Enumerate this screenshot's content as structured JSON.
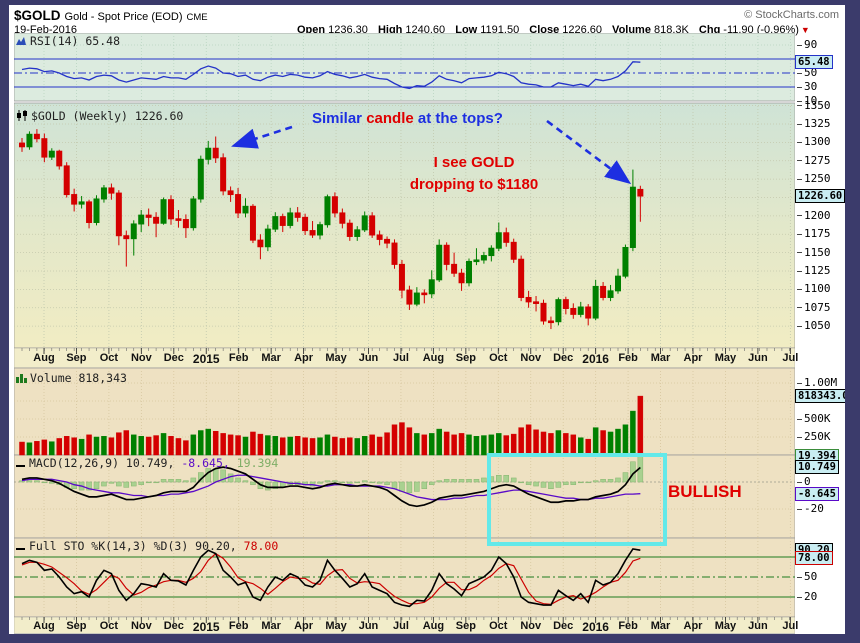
{
  "header": {
    "symbol": "$GOLD",
    "description": "Gold - Spot Price (EOD)",
    "exchange": "CME",
    "copyright": "© StockCharts.com",
    "date": "19-Feb-2016",
    "quote": {
      "open_label": "Open",
      "open": "1236.30",
      "high_label": "High",
      "high": "1240.60",
      "low_label": "Low",
      "low": "1191.50",
      "close_label": "Close",
      "close": "1226.60",
      "volume_label": "Volume",
      "volume": "818.3K",
      "chg_label": "Chg",
      "chg": "-11.90 (-0.96%)",
      "chg_dir_icon": "▼"
    }
  },
  "panel_titles": {
    "rsi": "RSI(14) 65.48",
    "main": "$GOLD (Weekly) 1226.60",
    "volume": "Volume 818,343",
    "macd_black": "MACD(12,26,9) 10.749,",
    "macd_purple": " -8.645,",
    "macd_green": " 19.394",
    "sto_black": "Full STO %K(14,3) %D(3) 90.20,",
    "sto_red": " 78.00"
  },
  "annotations": {
    "similar_blue1": "Similar ",
    "similar_red": "candle ",
    "similar_blue2": " at the tops?",
    "drop_line1": "I see GOLD",
    "drop_line2": "dropping to $1180",
    "bullish": "BULLISH"
  },
  "colors": {
    "frame_navy": "#3b3b6b",
    "candle_up": "#008000",
    "candle_down": "#d40000",
    "rsi_line": "#2433c8",
    "macd_line": "#000000",
    "macd_signal": "#5a0ac8",
    "macd_hist": "#a9d190",
    "sto_k": "#000000",
    "sto_d": "#cc0000",
    "annotation_blue": "#1d2fe1",
    "annotation_red": "#e00000",
    "highlight_cyan": "#63e9e9",
    "tag_bg": "#c9edf2"
  },
  "chart_data": {
    "type": "candlestick",
    "title": "$GOLD (Weekly) 1226.60",
    "symbol": "$GOLD",
    "timeframe": "Weekly",
    "x_axis_months": [
      "Aug",
      "Sep",
      "Oct",
      "Nov",
      "Dec",
      "2015",
      "Feb",
      "Mar",
      "Apr",
      "May",
      "Jun",
      "Jul",
      "Aug",
      "Sep",
      "Oct",
      "Nov",
      "Dec",
      "2016",
      "Feb",
      "Mar",
      "Apr",
      "May",
      "Jun",
      "Jul"
    ],
    "price_axis_ticks": [
      {
        "t": "1350",
        "v": 1350
      },
      {
        "t": "1325",
        "v": 1325
      },
      {
        "t": "1300",
        "v": 1300
      },
      {
        "t": "1275",
        "v": 1275
      },
      {
        "t": "1250",
        "v": 1250
      },
      {
        "t": "1200",
        "v": 1200
      },
      {
        "t": "1175",
        "v": 1175
      },
      {
        "t": "1150",
        "v": 1150
      },
      {
        "t": "1125",
        "v": 1125
      },
      {
        "t": "1100",
        "v": 1100
      },
      {
        "t": "1075",
        "v": 1075
      },
      {
        "t": "1050",
        "v": 1050
      }
    ],
    "price_box": {
      "t": "1226.60",
      "v": 1226.6,
      "border": "#000000"
    },
    "candles_ohlc": [
      [
        1299,
        1306,
        1287,
        1294
      ],
      [
        1294,
        1315,
        1290,
        1311
      ],
      [
        1311,
        1318,
        1300,
        1305
      ],
      [
        1305,
        1312,
        1273,
        1280
      ],
      [
        1280,
        1292,
        1276,
        1288
      ],
      [
        1288,
        1290,
        1263,
        1268
      ],
      [
        1268,
        1273,
        1225,
        1229
      ],
      [
        1229,
        1237,
        1206,
        1216
      ],
      [
        1216,
        1227,
        1210,
        1219
      ],
      [
        1219,
        1222,
        1183,
        1191
      ],
      [
        1191,
        1228,
        1187,
        1223
      ],
      [
        1223,
        1242,
        1218,
        1238
      ],
      [
        1238,
        1244,
        1222,
        1231
      ],
      [
        1231,
        1235,
        1160,
        1173
      ],
      [
        1173,
        1180,
        1131,
        1169
      ],
      [
        1169,
        1194,
        1146,
        1189
      ],
      [
        1189,
        1208,
        1178,
        1201
      ],
      [
        1201,
        1210,
        1186,
        1198
      ],
      [
        1198,
        1205,
        1171,
        1190
      ],
      [
        1190,
        1225,
        1188,
        1222
      ],
      [
        1222,
        1228,
        1188,
        1196
      ],
      [
        1196,
        1208,
        1184,
        1195
      ],
      [
        1195,
        1202,
        1170,
        1184
      ],
      [
        1184,
        1227,
        1180,
        1223
      ],
      [
        1223,
        1282,
        1218,
        1277
      ],
      [
        1277,
        1302,
        1270,
        1292
      ],
      [
        1292,
        1308,
        1272,
        1279
      ],
      [
        1279,
        1285,
        1228,
        1234
      ],
      [
        1234,
        1240,
        1219,
        1229
      ],
      [
        1229,
        1238,
        1197,
        1204
      ],
      [
        1204,
        1224,
        1198,
        1213
      ],
      [
        1213,
        1216,
        1163,
        1167
      ],
      [
        1167,
        1175,
        1141,
        1158
      ],
      [
        1158,
        1188,
        1152,
        1182
      ],
      [
        1182,
        1205,
        1178,
        1199
      ],
      [
        1199,
        1203,
        1178,
        1187
      ],
      [
        1187,
        1211,
        1183,
        1204
      ],
      [
        1204,
        1212,
        1192,
        1198
      ],
      [
        1198,
        1203,
        1174,
        1180
      ],
      [
        1180,
        1193,
        1170,
        1174
      ],
      [
        1174,
        1192,
        1168,
        1188
      ],
      [
        1188,
        1229,
        1184,
        1226
      ],
      [
        1226,
        1232,
        1198,
        1204
      ],
      [
        1204,
        1210,
        1183,
        1190
      ],
      [
        1190,
        1195,
        1166,
        1172
      ],
      [
        1172,
        1186,
        1166,
        1181
      ],
      [
        1181,
        1206,
        1178,
        1200
      ],
      [
        1200,
        1205,
        1170,
        1174
      ],
      [
        1174,
        1180,
        1160,
        1168
      ],
      [
        1168,
        1172,
        1156,
        1163
      ],
      [
        1163,
        1168,
        1128,
        1134
      ],
      [
        1134,
        1140,
        1088,
        1099
      ],
      [
        1099,
        1105,
        1072,
        1080
      ],
      [
        1080,
        1103,
        1077,
        1095
      ],
      [
        1095,
        1100,
        1081,
        1094
      ],
      [
        1094,
        1126,
        1088,
        1113
      ],
      [
        1113,
        1168,
        1110,
        1160
      ],
      [
        1160,
        1164,
        1126,
        1134
      ],
      [
        1134,
        1150,
        1117,
        1122
      ],
      [
        1122,
        1128,
        1098,
        1109
      ],
      [
        1109,
        1142,
        1104,
        1138
      ],
      [
        1138,
        1156,
        1133,
        1140
      ],
      [
        1140,
        1151,
        1135,
        1146
      ],
      [
        1146,
        1160,
        1138,
        1156
      ],
      [
        1156,
        1191,
        1152,
        1177
      ],
      [
        1177,
        1184,
        1158,
        1164
      ],
      [
        1164,
        1169,
        1136,
        1141
      ],
      [
        1141,
        1146,
        1084,
        1089
      ],
      [
        1089,
        1098,
        1075,
        1083
      ],
      [
        1083,
        1091,
        1070,
        1081
      ],
      [
        1081,
        1086,
        1052,
        1057
      ],
      [
        1057,
        1063,
        1046,
        1056
      ],
      [
        1056,
        1089,
        1051,
        1086
      ],
      [
        1086,
        1090,
        1066,
        1074
      ],
      [
        1074,
        1081,
        1060,
        1066
      ],
      [
        1066,
        1083,
        1062,
        1076
      ],
      [
        1076,
        1080,
        1051,
        1061
      ],
      [
        1061,
        1113,
        1058,
        1104
      ],
      [
        1104,
        1110,
        1085,
        1089
      ],
      [
        1089,
        1106,
        1084,
        1098
      ],
      [
        1098,
        1128,
        1094,
        1118
      ],
      [
        1118,
        1161,
        1115,
        1157
      ],
      [
        1157,
        1263,
        1152,
        1239
      ],
      [
        1236,
        1241,
        1192,
        1227
      ]
    ],
    "last_close": 1226.6,
    "subcharts": {
      "rsi": {
        "type": "line",
        "label": "RSI(14)",
        "last": 65.48,
        "overbought": 70,
        "oversold": 30,
        "mid": 50,
        "axis_ticks": [
          {
            "t": "90",
            "v": 90
          },
          {
            "t": "50",
            "v": 50
          },
          {
            "t": "30",
            "v": 30
          },
          {
            "t": "10",
            "v": 10
          }
        ],
        "box": {
          "t": "65.48",
          "v": 65.48,
          "border": "#2433c8"
        },
        "values": [
          55,
          57,
          56,
          52,
          53,
          50,
          45,
          42,
          43,
          40,
          45,
          47,
          46,
          40,
          37,
          40,
          43,
          42,
          41,
          45,
          43,
          43,
          41,
          48,
          56,
          60,
          57,
          50,
          49,
          45,
          47,
          41,
          39,
          44,
          47,
          45,
          48,
          47,
          44,
          43,
          46,
          52,
          48,
          46,
          43,
          45,
          48,
          44,
          42,
          41,
          35,
          30,
          28,
          32,
          31,
          37,
          46,
          41,
          39,
          36,
          42,
          43,
          44,
          46,
          51,
          49,
          45,
          36,
          34,
          33,
          30,
          30,
          36,
          34,
          32,
          34,
          31,
          41,
          39,
          41,
          45,
          53,
          66,
          65.48
        ]
      },
      "volume": {
        "type": "bar",
        "label": "Volume",
        "last": 818343,
        "axis_ticks": [
          {
            "t": "1.00M",
            "v": 1000
          },
          {
            "t": "500K",
            "v": 500
          },
          {
            "t": "250K",
            "v": 250
          }
        ],
        "box": {
          "t": "818343.00",
          "v": 818,
          "border": "#000000"
        },
        "values_thousands": [
          180,
          170,
          190,
          210,
          185,
          230,
          260,
          240,
          220,
          280,
          250,
          260,
          240,
          310,
          340,
          280,
          260,
          250,
          270,
          300,
          260,
          230,
          200,
          280,
          340,
          360,
          330,
          300,
          280,
          270,
          250,
          320,
          290,
          270,
          260,
          240,
          250,
          260,
          240,
          230,
          240,
          280,
          250,
          230,
          240,
          230,
          260,
          280,
          250,
          310,
          420,
          450,
          380,
          300,
          280,
          300,
          360,
          320,
          280,
          300,
          280,
          260,
          270,
          280,
          300,
          270,
          290,
          380,
          420,
          350,
          320,
          300,
          340,
          300,
          280,
          240,
          220,
          380,
          340,
          320,
          360,
          420,
          610,
          818
        ]
      },
      "macd": {
        "type": "line+bar",
        "label": "MACD(12,26,9)",
        "last_macd": 10.749,
        "last_signal": -8.645,
        "last_hist": 19.394,
        "axis_ticks": [
          {
            "t": "0",
            "v": 0
          },
          {
            "t": "-20",
            "v": -20
          }
        ],
        "boxes": [
          {
            "t": "19.394",
            "v": 19.394,
            "border": "#3a8c3a"
          },
          {
            "t": "10.749",
            "v": 10.749,
            "border": "#000000"
          },
          {
            "t": "-8.645",
            "v": -8.645,
            "border": "#5a0ac8"
          }
        ],
        "macd": [
          2,
          3,
          3,
          2,
          1,
          -1,
          -4,
          -7,
          -9,
          -11,
          -11,
          -10,
          -9,
          -11,
          -13,
          -13,
          -12,
          -11,
          -10,
          -8,
          -7,
          -7,
          -7,
          -4,
          2,
          7,
          10,
          11,
          10,
          8,
          6,
          2,
          -2,
          -4,
          -4,
          -4,
          -3,
          -3,
          -4,
          -5,
          -4,
          -2,
          -1,
          -2,
          -3,
          -3,
          -2,
          -3,
          -4,
          -6,
          -10,
          -14,
          -17,
          -18,
          -17,
          -15,
          -12,
          -11,
          -10,
          -10,
          -9,
          -8,
          -7,
          -5,
          -3,
          -2,
          -3,
          -6,
          -9,
          -11,
          -13,
          -15,
          -15,
          -14,
          -14,
          -13,
          -13,
          -11,
          -10,
          -9,
          -7,
          -2,
          6,
          10.749
        ],
        "signal": [
          1,
          2,
          2,
          2,
          2,
          1,
          0,
          -2,
          -3,
          -5,
          -6,
          -7,
          -8,
          -8,
          -9,
          -10,
          -10,
          -11,
          -10,
          -10,
          -9,
          -9,
          -8,
          -7,
          -5,
          -3,
          0,
          2,
          4,
          5,
          5,
          4,
          3,
          2,
          1,
          0,
          -1,
          -1,
          -2,
          -2,
          -3,
          -3,
          -2,
          -2,
          -2,
          -3,
          -3,
          -3,
          -3,
          -4,
          -5,
          -7,
          -9,
          -11,
          -12,
          -13,
          -13,
          -13,
          -12,
          -12,
          -11,
          -10,
          -10,
          -9,
          -8,
          -7,
          -6,
          -6,
          -7,
          -8,
          -9,
          -10,
          -11,
          -12,
          -12,
          -13,
          -13,
          -12,
          -12,
          -11,
          -10,
          -9,
          -9,
          -8.645
        ]
      },
      "stochastic": {
        "type": "line",
        "label": "Full STO %K(14,3) %D(3)",
        "last_k": 90.2,
        "last_d": 78.0,
        "upper": 80,
        "lower": 20,
        "mid": 50,
        "axis_ticks": [
          {
            "t": "50",
            "v": 50
          },
          {
            "t": "20",
            "v": 20
          }
        ],
        "boxes": [
          {
            "t": "90.20",
            "v": 90.2,
            "border": "#000000"
          },
          {
            "t": "78.00",
            "v": 78,
            "border": "#cc0000"
          }
        ],
        "k": [
          70,
          75,
          72,
          60,
          62,
          50,
          35,
          25,
          28,
          20,
          45,
          60,
          55,
          30,
          15,
          25,
          40,
          38,
          35,
          55,
          45,
          44,
          38,
          60,
          80,
          90,
          85,
          60,
          50,
          38,
          42,
          20,
          15,
          35,
          50,
          45,
          55,
          50,
          38,
          35,
          45,
          75,
          60,
          48,
          35,
          40,
          55,
          35,
          30,
          25,
          12,
          8,
          6,
          15,
          14,
          30,
          55,
          40,
          32,
          22,
          40,
          45,
          50,
          60,
          80,
          70,
          50,
          20,
          12,
          10,
          8,
          8,
          30,
          22,
          15,
          25,
          12,
          45,
          38,
          42,
          55,
          75,
          92,
          90.2
        ],
        "d": [
          68,
          72,
          72,
          69,
          65,
          57,
          49,
          40,
          29,
          24,
          31,
          42,
          53,
          48,
          33,
          23,
          27,
          34,
          38,
          43,
          45,
          45,
          42,
          48,
          58,
          75,
          85,
          78,
          65,
          49,
          43,
          40,
          33,
          24,
          33,
          43,
          50,
          48,
          48,
          41,
          39,
          52,
          60,
          61,
          48,
          41,
          43,
          42,
          40,
          30,
          21,
          15,
          10,
          10,
          12,
          20,
          33,
          42,
          42,
          31,
          31,
          36,
          45,
          52,
          63,
          70,
          67,
          47,
          27,
          14,
          10,
          9,
          15,
          20,
          22,
          17,
          21,
          27,
          35,
          42,
          45,
          57,
          74,
          78
        ]
      }
    }
  }
}
